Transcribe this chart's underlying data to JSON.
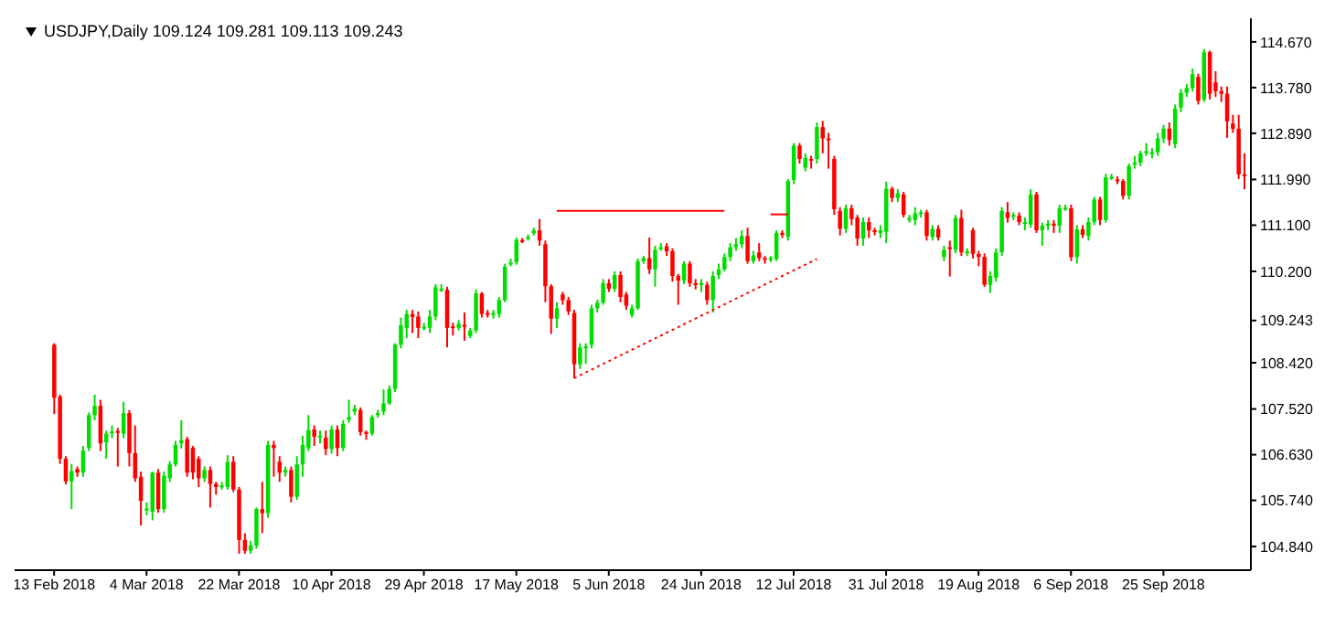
{
  "chart_data": {
    "type": "candlestick",
    "title": "USDJPY,Daily  109.124 109.281 109.113 109.243",
    "categories": [
      "13 Feb 2018",
      null,
      null,
      null,
      null,
      null,
      null,
      null,
      null,
      null,
      null,
      null,
      null,
      null,
      null,
      null,
      "4 Mar 2018",
      null,
      null,
      null,
      null,
      null,
      null,
      null,
      null,
      null,
      null,
      null,
      null,
      null,
      null,
      null,
      "22 Mar 2018",
      null,
      null,
      null,
      null,
      null,
      null,
      null,
      null,
      null,
      null,
      null,
      null,
      null,
      null,
      null,
      "10 Apr 2018",
      null,
      null,
      null,
      null,
      null,
      null,
      null,
      null,
      null,
      null,
      null,
      null,
      null,
      null,
      null,
      "29 Apr 2018",
      null,
      null,
      null,
      null,
      null,
      null,
      null,
      null,
      null,
      null,
      null,
      null,
      null,
      null,
      null,
      "17 May 2018",
      null,
      null,
      null,
      null,
      null,
      null,
      null,
      null,
      null,
      null,
      null,
      null,
      null,
      null,
      null,
      "5 Jun 2018",
      null,
      null,
      null,
      null,
      null,
      null,
      null,
      null,
      null,
      null,
      null,
      null,
      null,
      null,
      null,
      "24 Jun 2018",
      null,
      null,
      null,
      null,
      null,
      null,
      null,
      null,
      null,
      null,
      null,
      null,
      null,
      null,
      null,
      "12 Jul 2018",
      null,
      null,
      null,
      null,
      null,
      null,
      null,
      null,
      null,
      null,
      null,
      null,
      null,
      null,
      null,
      "31 Jul 2018",
      null,
      null,
      null,
      null,
      null,
      null,
      null,
      null,
      null,
      null,
      null,
      null,
      null,
      null,
      null,
      "19 Aug 2018",
      null,
      null,
      null,
      null,
      null,
      null,
      null,
      null,
      null,
      null,
      null,
      null,
      null,
      null,
      null,
      "6 Sep 2018",
      null,
      null,
      null,
      null,
      null,
      null,
      null,
      null,
      null,
      null,
      null,
      null,
      null,
      null,
      null,
      "25 Sep 2018",
      null,
      null,
      null,
      null,
      null,
      null,
      null,
      null,
      null,
      null,
      null,
      null,
      null,
      null
    ],
    "ohlc": [
      [
        108.77,
        108.8,
        107.42,
        107.74
      ],
      [
        107.76,
        107.8,
        106.45,
        106.55
      ],
      [
        106.55,
        106.6,
        106.05,
        106.11
      ],
      [
        106.11,
        106.45,
        105.57,
        106.31
      ],
      [
        106.35,
        106.4,
        106.2,
        106.28
      ],
      [
        106.28,
        106.8,
        106.2,
        106.71
      ],
      [
        106.76,
        107.45,
        106.7,
        107.4
      ],
      [
        107.4,
        107.8,
        107.3,
        107.58
      ],
      [
        107.58,
        107.7,
        106.7,
        106.85
      ],
      [
        106.87,
        107.1,
        106.55,
        107.04
      ],
      [
        107.06,
        107.2,
        106.95,
        107.08
      ],
      [
        107.09,
        107.15,
        106.4,
        107.07
      ],
      [
        107.04,
        107.66,
        106.95,
        107.44
      ],
      [
        107.44,
        107.5,
        106.4,
        106.66
      ],
      [
        106.66,
        107.2,
        106.1,
        106.17
      ],
      [
        106.2,
        106.3,
        105.25,
        105.73
      ],
      [
        105.55,
        105.7,
        105.45,
        105.58
      ],
      [
        105.52,
        106.3,
        105.35,
        106.28
      ],
      [
        106.28,
        106.35,
        105.5,
        105.57
      ],
      [
        105.57,
        106.3,
        105.5,
        106.22
      ],
      [
        106.17,
        106.5,
        106.1,
        106.44
      ],
      [
        106.44,
        106.9,
        106.4,
        106.82
      ],
      [
        106.85,
        107.3,
        106.75,
        106.91
      ],
      [
        106.93,
        106.98,
        106.2,
        106.28
      ],
      [
        106.76,
        106.8,
        106.15,
        106.28
      ],
      [
        106.55,
        106.6,
        106.0,
        106.17
      ],
      [
        106.17,
        106.4,
        106.1,
        106.33
      ],
      [
        106.33,
        106.4,
        105.6,
        106.06
      ],
      [
        106.06,
        106.1,
        105.85,
        106.0
      ],
      [
        106.0,
        106.1,
        105.95,
        106.03
      ],
      [
        106.0,
        106.62,
        105.95,
        106.49
      ],
      [
        106.49,
        106.6,
        105.9,
        105.95
      ],
      [
        105.95,
        106.0,
        104.7,
        104.97
      ],
      [
        104.97,
        105.1,
        104.7,
        104.76
      ],
      [
        104.76,
        104.95,
        104.7,
        104.86
      ],
      [
        104.86,
        105.6,
        104.8,
        105.57
      ],
      [
        105.57,
        106.1,
        105.1,
        105.49
      ],
      [
        105.49,
        106.9,
        105.4,
        106.82
      ],
      [
        106.82,
        106.9,
        106.2,
        106.76
      ],
      [
        106.49,
        106.6,
        106.1,
        106.28
      ],
      [
        106.28,
        106.4,
        106.2,
        106.33
      ],
      [
        106.33,
        106.4,
        105.7,
        105.81
      ],
      [
        105.81,
        106.6,
        105.75,
        106.44
      ],
      [
        106.44,
        107.0,
        106.2,
        106.82
      ],
      [
        106.76,
        107.4,
        106.7,
        107.11
      ],
      [
        107.12,
        107.2,
        106.8,
        106.98
      ],
      [
        106.98,
        107.1,
        106.85,
        107.0
      ],
      [
        106.96,
        107.1,
        106.62,
        106.74
      ],
      [
        106.74,
        107.2,
        106.65,
        107.12
      ],
      [
        107.12,
        107.2,
        106.6,
        106.76
      ],
      [
        106.76,
        107.3,
        106.7,
        107.23
      ],
      [
        107.31,
        107.7,
        107.25,
        107.36
      ],
      [
        107.47,
        107.6,
        107.4,
        107.53
      ],
      [
        107.5,
        107.55,
        107.0,
        107.07
      ],
      [
        107.07,
        107.1,
        106.92,
        107.04
      ],
      [
        107.04,
        107.4,
        107.0,
        107.36
      ],
      [
        107.4,
        107.5,
        107.35,
        107.44
      ],
      [
        107.47,
        107.9,
        107.4,
        107.63
      ],
      [
        107.63,
        107.98,
        107.6,
        107.91
      ],
      [
        107.91,
        108.8,
        107.85,
        108.77
      ],
      [
        108.77,
        109.3,
        108.7,
        109.15
      ],
      [
        109.1,
        109.45,
        108.9,
        109.37
      ],
      [
        109.37,
        109.45,
        109.0,
        109.31
      ],
      [
        109.32,
        109.42,
        108.9,
        109.1
      ],
      [
        109.1,
        109.2,
        109.05,
        109.12
      ],
      [
        109.1,
        109.45,
        109.0,
        109.32
      ],
      [
        109.32,
        109.95,
        109.25,
        109.89
      ],
      [
        109.85,
        109.95,
        109.8,
        109.86
      ],
      [
        109.84,
        109.9,
        108.72,
        109.1
      ],
      [
        109.13,
        109.2,
        108.95,
        109.1
      ],
      [
        109.1,
        109.25,
        109.05,
        109.18
      ],
      [
        109.16,
        109.4,
        108.85,
        109.12
      ],
      [
        108.94,
        109.1,
        108.9,
        109.05
      ],
      [
        109.05,
        109.85,
        109.0,
        109.77
      ],
      [
        109.77,
        109.8,
        109.3,
        109.37
      ],
      [
        109.39,
        109.45,
        109.3,
        109.37
      ],
      [
        109.35,
        109.45,
        109.28,
        109.39
      ],
      [
        109.37,
        109.7,
        109.3,
        109.64
      ],
      [
        109.64,
        110.35,
        109.6,
        110.29
      ],
      [
        110.35,
        110.45,
        110.3,
        110.37
      ],
      [
        110.38,
        110.86,
        110.33,
        110.81
      ],
      [
        110.81,
        110.85,
        110.75,
        110.78
      ],
      [
        110.84,
        110.92,
        110.8,
        110.87
      ],
      [
        110.94,
        111.05,
        110.9,
        111.0
      ],
      [
        111.0,
        111.22,
        110.7,
        110.8
      ],
      [
        110.73,
        110.8,
        109.6,
        109.91
      ],
      [
        109.91,
        109.95,
        108.98,
        109.28
      ],
      [
        109.28,
        109.6,
        109.1,
        109.48
      ],
      [
        109.75,
        109.8,
        109.55,
        109.64
      ],
      [
        109.64,
        109.7,
        109.35,
        109.42
      ],
      [
        109.39,
        109.45,
        108.12,
        108.39
      ],
      [
        108.39,
        108.8,
        108.3,
        108.72
      ],
      [
        108.72,
        108.8,
        108.4,
        108.74
      ],
      [
        108.77,
        109.55,
        108.7,
        109.48
      ],
      [
        109.48,
        109.65,
        109.4,
        109.59
      ],
      [
        109.59,
        110.05,
        109.55,
        109.97
      ],
      [
        109.97,
        110.05,
        109.8,
        109.86
      ],
      [
        109.86,
        110.2,
        109.8,
        110.13
      ],
      [
        110.13,
        110.2,
        109.6,
        109.7
      ],
      [
        109.75,
        109.8,
        109.45,
        109.53
      ],
      [
        109.35,
        109.55,
        109.3,
        109.48
      ],
      [
        109.48,
        110.45,
        109.45,
        110.4
      ],
      [
        110.4,
        110.5,
        110.35,
        110.46
      ],
      [
        110.46,
        110.86,
        110.15,
        110.24
      ],
      [
        110.24,
        110.7,
        109.9,
        110.62
      ],
      [
        110.65,
        110.75,
        110.6,
        110.67
      ],
      [
        110.69,
        110.75,
        110.5,
        110.59
      ],
      [
        110.59,
        110.65,
        110.0,
        110.11
      ],
      [
        110.11,
        110.15,
        109.55,
        110.02
      ],
      [
        110.02,
        110.4,
        109.95,
        110.35
      ],
      [
        110.35,
        110.4,
        109.9,
        109.97
      ],
      [
        109.97,
        110.05,
        109.85,
        109.94
      ],
      [
        109.94,
        110.05,
        109.8,
        109.97
      ],
      [
        109.94,
        110.0,
        109.55,
        109.64
      ],
      [
        109.64,
        110.2,
        109.4,
        110.11
      ],
      [
        110.13,
        110.35,
        110.05,
        110.24
      ],
      [
        110.24,
        110.55,
        110.2,
        110.48
      ],
      [
        110.48,
        110.75,
        110.4,
        110.67
      ],
      [
        110.67,
        110.85,
        110.6,
        110.73
      ],
      [
        110.73,
        111.0,
        110.65,
        110.89
      ],
      [
        110.89,
        111.05,
        110.35,
        110.4
      ],
      [
        110.4,
        110.6,
        110.35,
        110.51
      ],
      [
        110.57,
        110.75,
        110.4,
        110.46
      ],
      [
        110.46,
        110.5,
        110.35,
        110.44
      ],
      [
        110.44,
        110.5,
        110.38,
        110.46
      ],
      [
        110.44,
        111.0,
        110.4,
        110.95
      ],
      [
        110.95,
        111.0,
        110.85,
        110.91
      ],
      [
        110.87,
        112.0,
        110.8,
        111.96
      ],
      [
        111.98,
        112.7,
        111.9,
        112.65
      ],
      [
        112.65,
        112.7,
        112.3,
        112.39
      ],
      [
        112.22,
        112.5,
        112.15,
        112.41
      ],
      [
        112.39,
        112.45,
        112.2,
        112.37
      ],
      [
        112.39,
        113.1,
        112.3,
        113.01
      ],
      [
        113.01,
        113.13,
        112.5,
        112.79
      ],
      [
        112.79,
        112.9,
        112.2,
        112.76
      ],
      [
        112.39,
        112.45,
        111.3,
        111.41
      ],
      [
        111.38,
        111.45,
        110.9,
        111.03
      ],
      [
        111.03,
        111.5,
        110.95,
        111.43
      ],
      [
        111.43,
        111.5,
        111.1,
        111.22
      ],
      [
        111.25,
        111.3,
        110.7,
        110.84
      ],
      [
        110.84,
        111.25,
        110.7,
        111.16
      ],
      [
        111.16,
        111.25,
        110.85,
        111.0
      ],
      [
        111.0,
        111.05,
        110.9,
        110.98
      ],
      [
        110.95,
        111.1,
        110.85,
        111.0
      ],
      [
        110.97,
        111.95,
        110.75,
        111.81
      ],
      [
        111.81,
        111.85,
        111.55,
        111.63
      ],
      [
        111.63,
        111.8,
        111.55,
        111.72
      ],
      [
        111.7,
        111.75,
        111.25,
        111.3
      ],
      [
        111.22,
        111.3,
        111.15,
        111.24
      ],
      [
        111.2,
        111.45,
        111.1,
        111.33
      ],
      [
        111.33,
        111.4,
        111.25,
        111.35
      ],
      [
        111.35,
        111.4,
        110.8,
        110.89
      ],
      [
        110.87,
        111.1,
        110.8,
        111.03
      ],
      [
        111.03,
        111.1,
        110.8,
        110.86
      ],
      [
        110.48,
        110.7,
        110.4,
        110.62
      ],
      [
        110.67,
        110.8,
        110.1,
        110.64
      ],
      [
        110.62,
        111.3,
        110.55,
        111.24
      ],
      [
        111.24,
        111.4,
        110.5,
        110.57
      ],
      [
        110.57,
        110.65,
        110.5,
        110.59
      ],
      [
        111.0,
        111.05,
        110.45,
        110.54
      ],
      [
        110.54,
        110.6,
        110.3,
        110.48
      ],
      [
        110.48,
        110.55,
        109.9,
        109.94
      ],
      [
        109.94,
        110.2,
        109.78,
        110.11
      ],
      [
        110.08,
        110.65,
        110.0,
        110.57
      ],
      [
        110.57,
        111.45,
        110.5,
        111.38
      ],
      [
        111.35,
        111.55,
        111.15,
        111.24
      ],
      [
        111.27,
        111.35,
        111.2,
        111.3
      ],
      [
        111.29,
        111.35,
        111.1,
        111.16
      ],
      [
        111.14,
        111.25,
        111.0,
        111.16
      ],
      [
        111.11,
        111.8,
        111.05,
        111.7
      ],
      [
        111.7,
        111.75,
        110.95,
        111.0
      ],
      [
        111.0,
        111.15,
        110.7,
        111.09
      ],
      [
        111.09,
        111.2,
        111.0,
        111.13
      ],
      [
        111.13,
        111.2,
        110.95,
        111.09
      ],
      [
        111.09,
        111.5,
        110.95,
        111.43
      ],
      [
        111.43,
        111.5,
        111.38,
        111.44
      ],
      [
        111.43,
        111.5,
        110.4,
        110.48
      ],
      [
        110.48,
        111.1,
        110.35,
        111.02
      ],
      [
        111.02,
        111.1,
        110.85,
        110.91
      ],
      [
        110.89,
        111.25,
        110.8,
        111.16
      ],
      [
        111.16,
        111.65,
        111.1,
        111.6
      ],
      [
        111.6,
        111.65,
        111.1,
        111.2
      ],
      [
        111.2,
        112.1,
        111.15,
        112.03
      ],
      [
        112.02,
        112.1,
        111.98,
        112.04
      ],
      [
        111.99,
        112.05,
        111.9,
        111.96
      ],
      [
        111.96,
        112.0,
        111.6,
        111.67
      ],
      [
        111.67,
        112.3,
        111.6,
        112.25
      ],
      [
        112.28,
        112.45,
        112.2,
        112.32
      ],
      [
        112.32,
        112.55,
        112.25,
        112.5
      ],
      [
        112.52,
        112.7,
        112.45,
        112.54
      ],
      [
        112.49,
        112.6,
        112.4,
        112.52
      ],
      [
        112.52,
        112.9,
        112.45,
        112.79
      ],
      [
        112.79,
        113.05,
        112.7,
        112.98
      ],
      [
        112.98,
        113.1,
        112.65,
        112.76
      ],
      [
        112.68,
        113.45,
        112.6,
        113.37
      ],
      [
        113.39,
        113.75,
        113.3,
        113.68
      ],
      [
        113.68,
        113.85,
        113.6,
        113.77
      ],
      [
        113.77,
        114.15,
        113.7,
        114.04
      ],
      [
        113.99,
        114.05,
        113.45,
        113.52
      ],
      [
        113.55,
        114.53,
        113.5,
        114.47
      ],
      [
        114.47,
        114.5,
        113.55,
        113.66
      ],
      [
        113.88,
        114.1,
        113.6,
        113.71
      ],
      [
        113.71,
        113.8,
        113.5,
        113.66
      ],
      [
        113.66,
        113.8,
        112.8,
        113.12
      ],
      [
        113.08,
        113.25,
        112.9,
        112.98
      ],
      [
        112.98,
        113.25,
        112.0,
        112.09
      ],
      [
        112.09,
        112.5,
        111.8,
        112.07
      ]
    ],
    "colors": [
      "#ff0000",
      "#ff0000",
      "#ff0000",
      "#00dd00",
      "#ff0000",
      "#00dd00",
      "#00dd00",
      "#00dd00",
      "#ff0000",
      "#00dd00",
      "#00dd00",
      "#ff0000",
      "#00dd00",
      "#ff0000",
      "#ff0000",
      "#ff0000",
      "#00dd00",
      "#00dd00",
      "#ff0000",
      "#00dd00",
      "#00dd00",
      "#00dd00",
      "#00dd00",
      "#ff0000",
      "#ff0000",
      "#ff0000",
      "#00dd00",
      "#ff0000",
      "#ff0000",
      "#00dd00",
      "#00dd00",
      "#ff0000",
      "#ff0000",
      "#ff0000",
      "#00dd00",
      "#00dd00",
      "#ff0000",
      "#00dd00",
      "#ff0000",
      "#ff0000",
      "#00dd00",
      "#ff0000",
      "#00dd00",
      "#00dd00",
      "#00dd00",
      "#ff0000",
      "#00dd00",
      "#ff0000",
      "#00dd00",
      "#ff0000",
      "#00dd00",
      "#00dd00",
      "#00dd00",
      "#ff0000",
      "#ff0000",
      "#00dd00",
      "#00dd00",
      "#00dd00",
      "#00dd00",
      "#00dd00",
      "#00dd00",
      "#00dd00",
      "#ff0000",
      "#ff0000",
      "#00dd00",
      "#00dd00",
      "#00dd00",
      "#00dd00",
      "#ff0000",
      "#ff0000",
      "#00dd00",
      "#ff0000",
      "#00dd00",
      "#00dd00",
      "#ff0000",
      "#ff0000",
      "#00dd00",
      "#00dd00",
      "#00dd00",
      "#00dd00",
      "#00dd00",
      "#ff0000",
      "#00dd00",
      "#00dd00",
      "#ff0000",
      "#ff0000",
      "#ff0000",
      "#00dd00",
      "#ff0000",
      "#ff0000",
      "#ff0000",
      "#00dd00",
      "#00dd00",
      "#00dd00",
      "#00dd00",
      "#00dd00",
      "#ff0000",
      "#00dd00",
      "#ff0000",
      "#ff0000",
      "#00dd00",
      "#00dd00",
      "#00dd00",
      "#ff0000",
      "#00dd00",
      "#00dd00",
      "#ff0000",
      "#ff0000",
      "#ff0000",
      "#00dd00",
      "#ff0000",
      "#ff0000",
      "#00dd00",
      "#ff0000",
      "#00dd00",
      "#00dd00",
      "#00dd00",
      "#00dd00",
      "#00dd00",
      "#00dd00",
      "#ff0000",
      "#00dd00",
      "#ff0000",
      "#ff0000",
      "#00dd00",
      "#00dd00",
      "#ff0000",
      "#00dd00",
      "#00dd00",
      "#ff0000",
      "#00dd00",
      "#ff0000",
      "#00dd00",
      "#ff0000",
      "#ff0000",
      "#ff0000",
      "#ff0000",
      "#00dd00",
      "#ff0000",
      "#ff0000",
      "#00dd00",
      "#ff0000",
      "#ff0000",
      "#00dd00",
      "#00dd00",
      "#ff0000",
      "#00dd00",
      "#ff0000",
      "#00dd00",
      "#00dd00",
      "#00dd00",
      "#ff0000",
      "#00dd00",
      "#ff0000",
      "#00dd00",
      "#ff0000",
      "#00dd00",
      "#ff0000",
      "#00dd00",
      "#ff0000",
      "#ff0000",
      "#ff0000",
      "#00dd00",
      "#00dd00",
      "#00dd00",
      "#ff0000",
      "#00dd00",
      "#ff0000",
      "#00dd00",
      "#00dd00",
      "#ff0000",
      "#00dd00",
      "#00dd00",
      "#ff0000",
      "#00dd00",
      "#00dd00",
      "#ff0000",
      "#00dd00",
      "#ff0000",
      "#00dd00",
      "#00dd00",
      "#ff0000",
      "#00dd00",
      "#00dd00",
      "#ff0000",
      "#ff0000",
      "#00dd00",
      "#00dd00",
      "#00dd00",
      "#00dd00",
      "#00dd00",
      "#00dd00",
      "#00dd00",
      "#ff0000",
      "#00dd00",
      "#00dd00",
      "#00dd00",
      "#00dd00",
      "#ff0000",
      "#00dd00",
      "#ff0000",
      "#ff0000",
      "#ff0000",
      "#ff0000",
      "#ff0000",
      "#ff0000",
      "#ff0000"
    ],
    "series": [
      {
        "type": "line",
        "color": "#ff0000",
        "line_style": "dotted",
        "values": [
          null,
          null,
          null,
          null,
          null,
          null,
          null,
          null,
          null,
          null,
          null,
          null,
          null,
          null,
          null,
          null,
          null,
          null,
          null,
          null,
          null,
          null,
          null,
          null,
          null,
          null,
          null,
          null,
          null,
          null,
          null,
          null,
          null,
          null,
          null,
          null,
          null,
          null,
          null,
          null,
          null,
          null,
          null,
          null,
          null,
          null,
          null,
          null,
          null,
          null,
          null,
          null,
          null,
          null,
          null,
          null,
          null,
          null,
          null,
          null,
          null,
          null,
          null,
          null,
          null,
          null,
          null,
          null,
          null,
          null,
          null,
          null,
          null,
          null,
          null,
          null,
          null,
          null,
          null,
          null,
          null,
          null,
          null,
          null,
          null,
          null,
          null,
          null,
          null,
          null,
          108.12,
          null,
          null,
          null,
          null,
          null,
          null,
          null,
          null,
          null,
          null,
          null,
          null,
          null,
          null,
          null,
          null,
          null,
          null,
          null,
          null,
          null,
          null,
          null,
          null,
          null,
          null,
          null,
          null,
          null,
          null,
          null,
          null,
          null,
          null,
          null,
          null,
          null,
          null,
          null,
          null,
          null,
          110.44,
          null,
          null,
          null,
          null,
          null,
          null,
          null,
          null,
          null,
          null,
          null,
          null,
          null,
          null,
          null,
          null,
          null,
          null,
          null,
          null,
          null,
          null,
          null,
          null,
          null,
          null,
          null,
          null,
          null,
          null,
          null,
          null,
          null,
          null,
          null,
          null,
          null,
          null,
          null,
          null,
          null,
          null,
          null,
          null,
          null,
          null,
          null,
          null,
          null,
          null,
          null,
          null,
          null,
          null,
          null,
          null,
          null,
          null,
          null,
          null,
          null,
          null,
          null,
          null,
          null,
          null,
          null,
          null,
          null,
          null,
          null,
          null,
          null,
          null
        ]
      },
      {
        "type": "line",
        "color": "#ff0000",
        "line_style": "solid",
        "values": [
          null,
          null,
          null,
          null,
          null,
          null,
          null,
          null,
          null,
          null,
          null,
          null,
          null,
          null,
          null,
          null,
          null,
          null,
          null,
          null,
          null,
          null,
          null,
          null,
          null,
          null,
          null,
          null,
          null,
          null,
          null,
          null,
          null,
          null,
          null,
          null,
          null,
          null,
          null,
          null,
          null,
          null,
          null,
          null,
          null,
          null,
          null,
          null,
          null,
          null,
          null,
          null,
          null,
          null,
          null,
          null,
          null,
          null,
          null,
          null,
          null,
          null,
          null,
          null,
          null,
          null,
          null,
          null,
          null,
          null,
          null,
          null,
          null,
          null,
          null,
          null,
          null,
          null,
          null,
          null,
          null,
          null,
          null,
          null,
          null,
          null,
          null,
          111.38,
          null,
          null,
          null,
          null,
          null,
          null,
          null,
          null,
          null,
          null,
          null,
          null,
          null,
          null,
          null,
          null,
          null,
          null,
          null,
          null,
          null,
          null,
          null,
          null,
          null,
          null,
          null,
          null,
          111.38,
          null,
          null,
          null,
          null,
          null,
          null,
          null,
          null,
          null,
          null,
          null,
          null,
          null,
          null,
          null,
          null,
          null,
          null,
          null,
          null,
          null,
          null,
          null,
          null,
          null,
          null,
          null,
          null,
          null,
          null,
          null,
          null,
          null,
          null,
          null,
          null,
          null,
          null,
          null,
          null,
          null,
          null,
          null,
          null,
          null,
          null,
          null,
          null,
          null,
          null,
          null,
          null,
          null,
          null,
          null,
          null,
          null,
          null,
          null,
          null,
          null,
          null,
          null,
          null,
          null,
          null,
          null,
          null,
          null,
          null,
          null,
          null,
          null,
          null,
          null,
          null,
          null,
          null,
          null,
          null,
          null,
          null,
          null,
          null,
          null,
          null,
          null,
          null,
          null,
          null
        ]
      },
      {
        "type": "line",
        "color": "#ff0000",
        "line_style": "solid",
        "values": [
          null,
          null,
          null,
          null,
          null,
          null,
          null,
          null,
          null,
          null,
          null,
          null,
          null,
          null,
          null,
          null,
          null,
          null,
          null,
          null,
          null,
          null,
          null,
          null,
          null,
          null,
          null,
          null,
          null,
          null,
          null,
          null,
          null,
          null,
          null,
          null,
          null,
          null,
          null,
          null,
          null,
          null,
          null,
          null,
          null,
          null,
          null,
          null,
          null,
          null,
          null,
          null,
          null,
          null,
          null,
          null,
          null,
          null,
          null,
          null,
          null,
          null,
          null,
          null,
          null,
          null,
          null,
          null,
          null,
          null,
          null,
          null,
          null,
          null,
          null,
          null,
          null,
          null,
          null,
          null,
          null,
          null,
          null,
          null,
          null,
          null,
          null,
          null,
          null,
          null,
          null,
          null,
          null,
          null,
          null,
          null,
          null,
          null,
          null,
          null,
          null,
          null,
          null,
          null,
          null,
          null,
          null,
          null,
          null,
          null,
          null,
          null,
          null,
          null,
          null,
          null,
          null,
          null,
          null,
          null,
          null,
          null,
          null,
          null,
          111.31,
          null,
          null,
          111.31,
          null,
          null,
          null,
          null,
          null,
          null,
          null,
          null,
          null,
          null,
          null,
          null,
          null,
          null,
          null,
          null,
          null,
          null,
          null,
          null,
          null,
          null,
          null,
          null,
          null,
          null,
          null,
          null,
          null,
          null,
          null,
          null,
          null,
          null,
          null,
          null,
          null,
          null,
          null,
          null,
          null,
          null,
          null,
          null,
          null,
          null,
          null,
          null,
          null,
          null,
          null,
          null,
          null,
          null,
          null,
          null,
          null,
          null,
          null,
          null,
          null,
          null,
          null,
          null,
          null,
          null,
          null,
          null,
          null,
          null,
          null,
          null,
          null,
          null,
          null,
          null,
          null,
          null,
          null
        ]
      }
    ],
    "ylim": [
      104.38,
      115.13
    ],
    "yticks": [
      {
        "value": 114.67,
        "label": "114.670"
      },
      {
        "value": 113.78,
        "label": "113.780"
      },
      {
        "value": 112.89,
        "label": "112.890"
      },
      {
        "value": 111.99,
        "label": "111.990"
      },
      {
        "value": 111.1,
        "label": "111.100"
      },
      {
        "value": 110.2,
        "label": "110.200"
      },
      {
        "value": 109.243,
        "label": "109.243"
      },
      {
        "value": 108.42,
        "label": "108.420"
      },
      {
        "value": 107.52,
        "label": "107.520"
      },
      {
        "value": 106.63,
        "label": "106.630"
      },
      {
        "value": 105.74,
        "label": "105.740"
      },
      {
        "value": 104.84,
        "label": "104.840"
      }
    ]
  }
}
